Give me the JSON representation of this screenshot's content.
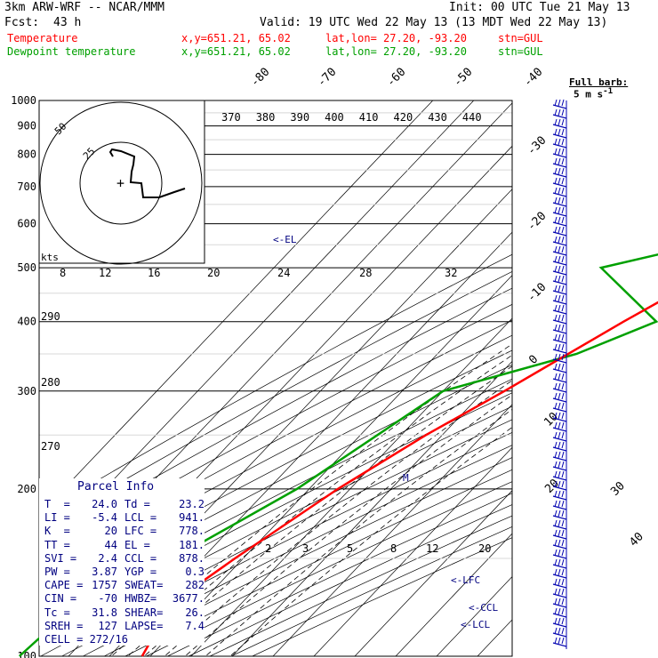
{
  "header": {
    "model": "3km ARW-WRF -- NCAR/MMM",
    "init": "Init: 00 UTC Tue 21 May 13",
    "fcst_label": "Fcst:",
    "fcst_hours": "43 h",
    "valid": "Valid: 19 UTC Wed 22 May 13 (13 MDT Wed 22 May 13)"
  },
  "legend": [
    {
      "name": "Temperature",
      "color": "#ff0000",
      "xy": "x,y=651.21, 65.02",
      "latlon": "lat,lon= 27.20, -93.20",
      "stn": "stn=GUL"
    },
    {
      "name": "Dewpoint temperature",
      "color": "#00a000",
      "xy": "x,y=651.21, 65.02",
      "latlon": "lat,lon= 27.20, -93.20",
      "stn": "stn=GUL"
    }
  ],
  "barb_legend": {
    "line1": "Full barb:",
    "line2": "5 m s"
  },
  "pressure_labels": [
    "100",
    "200",
    "300",
    "400",
    "500",
    "600",
    "700",
    "800",
    "900",
    "1000"
  ],
  "colors": {
    "temperature": "#ff0000",
    "dewpoint": "#00a000",
    "isobar": "#000000",
    "barb": "#0000b0",
    "parcel_text": "#000080"
  },
  "chart_data": {
    "type": "line",
    "title": "",
    "xlabel": "",
    "ylabel": "",
    "y_scale": "log-pressure",
    "ylim": [
      1000,
      100
    ],
    "series": [
      {
        "name": "Temperature",
        "x": [
          24.0,
          23,
          22,
          20,
          17,
          12,
          5,
          -2,
          -11,
          -22,
          -35,
          -44,
          -53,
          -62,
          -67,
          -62
        ],
        "p": [
          990,
          975,
          950,
          900,
          850,
          800,
          700,
          650,
          500,
          400,
          300,
          250,
          200,
          150,
          125,
          100
        ]
      },
      {
        "name": "Dewpoint temperature",
        "x": [
          23.2,
          22,
          21,
          20,
          11,
          10,
          2,
          0,
          -4,
          -40,
          -14,
          -26,
          -50,
          -63,
          -77,
          -90,
          -92
        ],
        "p": [
          990,
          975,
          950,
          900,
          850,
          800,
          700,
          650,
          600,
          500,
          400,
          350,
          300,
          200,
          150,
          125,
          100
        ]
      }
    ],
    "isotherm_labels": [
      "-80",
      "-70",
      "-60",
      "-50",
      "-40",
      "-30",
      "-20",
      "-10",
      "0",
      "10",
      "20",
      "30",
      "40"
    ],
    "theta_labels": [
      "370",
      "380",
      "390",
      "400",
      "410",
      "420",
      "430",
      "440"
    ],
    "dry_adiabat_labels": [
      "290",
      "280",
      "270"
    ],
    "mixing_ratio_labels_upper": [
      "8",
      "12",
      "16",
      "20",
      "24",
      "28",
      "32"
    ],
    "mixing_ratio_labels_lower": [
      "2",
      "3",
      "5",
      "8",
      "12",
      "20"
    ],
    "level_markers": [
      "<-EL",
      "<-LFC",
      "<-CCL",
      "<-LCL"
    ],
    "hodograph": {
      "label": "kts",
      "rings": [
        "25",
        "50"
      ]
    }
  },
  "parcel_info": {
    "title": "Parcel Info",
    "rows": [
      [
        "T  =",
        "24.0",
        "Td =",
        "23.2"
      ],
      [
        "LI =",
        "-5.4",
        "LCL =",
        "941."
      ],
      [
        "K  =",
        "20",
        "LFC =",
        "778."
      ],
      [
        "TT =",
        "44",
        "EL =",
        "181."
      ],
      [
        "SVI =",
        "2.4",
        "CCL =",
        "878."
      ],
      [
        "PW =",
        "3.87",
        "YGP =",
        "0.3"
      ],
      [
        "CAPE =",
        "1757",
        "SWEAT=",
        "282"
      ],
      [
        "CIN =",
        "-70",
        "HWBZ=",
        "3677."
      ],
      [
        "Tc =",
        "31.8",
        "SHEAR=",
        "26."
      ],
      [
        "SREH =",
        "127",
        "LAPSE=",
        "7.4"
      ]
    ],
    "cell": "CELL = 272/16"
  }
}
